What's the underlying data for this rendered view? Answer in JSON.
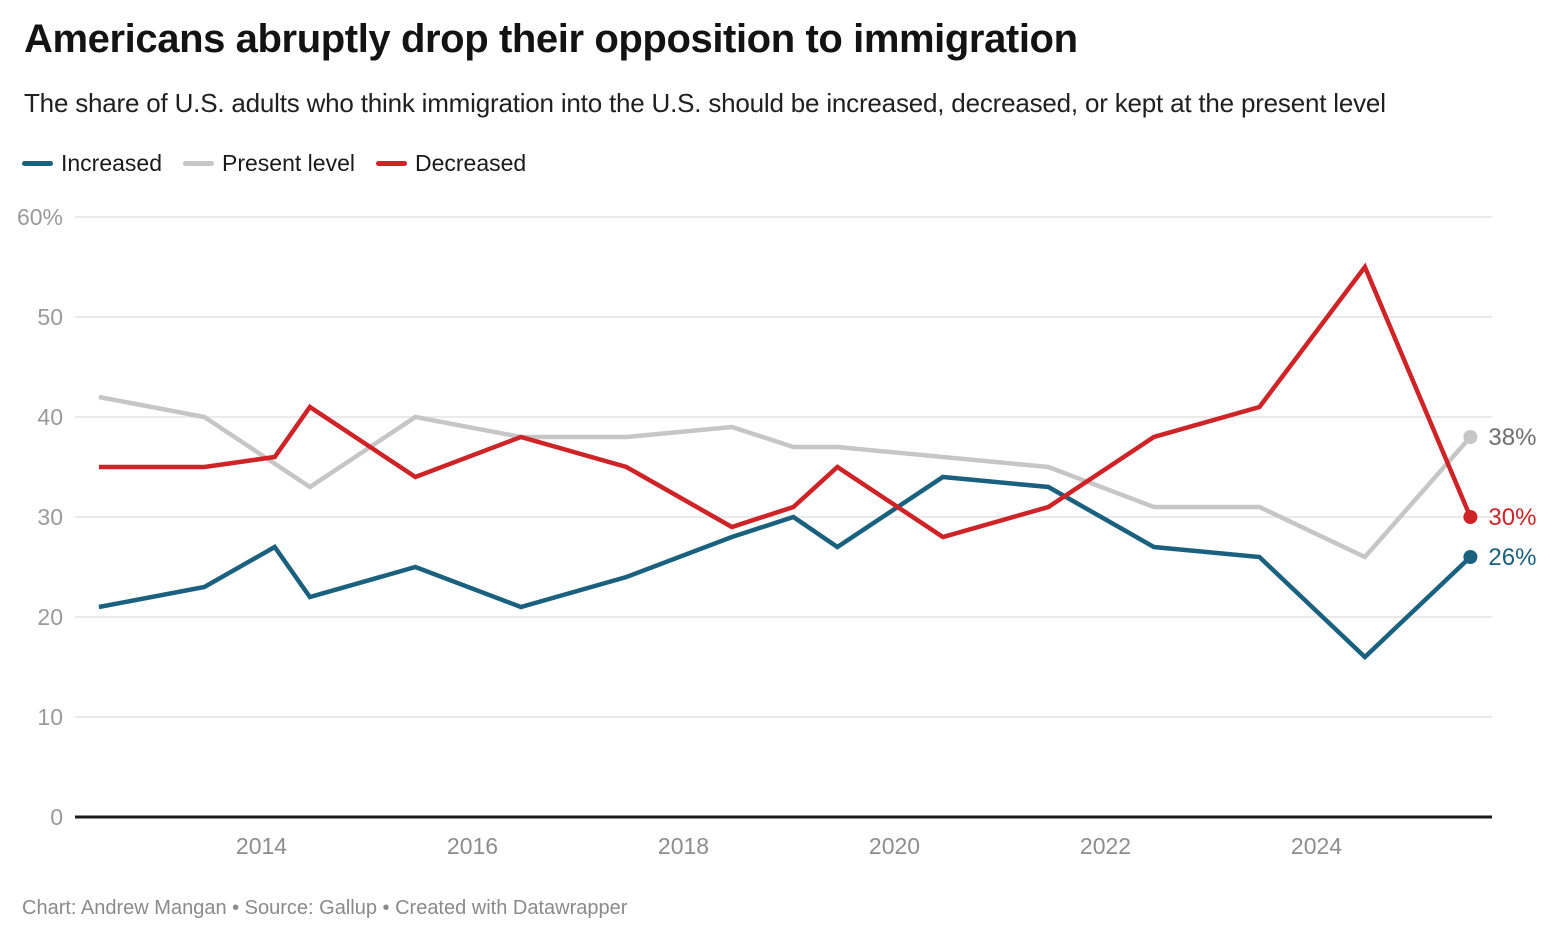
{
  "chart_data": {
    "type": "line",
    "title": "Americans abruptly drop their opposition to immigration",
    "subtitle": "The share of U.S. adults who think immigration into the U.S. should be increased, decreased, or kept at the present level",
    "legend_position": "top-left",
    "grid": "horizontal",
    "ylim": [
      0,
      60
    ],
    "y_ticks": [
      {
        "v": 60,
        "label": "60%"
      },
      {
        "v": 50,
        "label": "50"
      },
      {
        "v": 40,
        "label": "40"
      },
      {
        "v": 30,
        "label": "30"
      },
      {
        "v": 20,
        "label": "20"
      },
      {
        "v": 10,
        "label": "10"
      },
      {
        "v": 0,
        "label": "0"
      }
    ],
    "x_ticks": [
      {
        "v": 2014,
        "label": "2014"
      },
      {
        "v": 2016,
        "label": "2016"
      },
      {
        "v": 2018,
        "label": "2018"
      },
      {
        "v": 2020,
        "label": "2020"
      },
      {
        "v": 2022,
        "label": "2022"
      },
      {
        "v": 2024,
        "label": "2024"
      }
    ],
    "series": [
      {
        "id": "increased",
        "name": "Increased",
        "color": "#1A617F",
        "label_color": "#1A617F",
        "end_label": "26%",
        "points": [
          [
            "2012-06",
            21
          ],
          [
            "2013-06",
            23
          ],
          [
            "2014-02",
            27
          ],
          [
            "2014-06",
            22
          ],
          [
            "2015-06",
            25
          ],
          [
            "2016-06",
            21
          ],
          [
            "2017-06",
            24
          ],
          [
            "2018-06",
            28
          ],
          [
            "2019-01",
            30
          ],
          [
            "2019-06",
            27
          ],
          [
            "2020-06",
            34
          ],
          [
            "2021-06",
            33
          ],
          [
            "2022-06",
            27
          ],
          [
            "2023-06",
            26
          ],
          [
            "2024-06",
            16
          ],
          [
            "2025-06",
            26
          ]
        ]
      },
      {
        "id": "present-level",
        "name": "Present level",
        "color": "#C6C6C6",
        "label_color": "#6E6E6E",
        "end_label": "38%",
        "points": [
          [
            "2012-06",
            42
          ],
          [
            "2013-06",
            40
          ],
          [
            "2014-06",
            33
          ],
          [
            "2015-06",
            40
          ],
          [
            "2016-06",
            38
          ],
          [
            "2017-06",
            38
          ],
          [
            "2018-06",
            39
          ],
          [
            "2019-01",
            37
          ],
          [
            "2019-06",
            37
          ],
          [
            "2020-06",
            36
          ],
          [
            "2021-06",
            35
          ],
          [
            "2022-06",
            31
          ],
          [
            "2023-06",
            31
          ],
          [
            "2024-06",
            26
          ],
          [
            "2025-06",
            38
          ]
        ]
      },
      {
        "id": "decreased",
        "name": "Decreased",
        "color": "#CE2327",
        "label_color": "#CE2327",
        "end_label": "30%",
        "points": [
          [
            "2012-06",
            35
          ],
          [
            "2013-06",
            35
          ],
          [
            "2014-02",
            36
          ],
          [
            "2014-06",
            41
          ],
          [
            "2015-06",
            34
          ],
          [
            "2016-06",
            38
          ],
          [
            "2017-06",
            35
          ],
          [
            "2018-06",
            29
          ],
          [
            "2019-01",
            31
          ],
          [
            "2019-06",
            35
          ],
          [
            "2020-06",
            28
          ],
          [
            "2021-06",
            31
          ],
          [
            "2022-06",
            38
          ],
          [
            "2023-06",
            41
          ],
          [
            "2024-06",
            55
          ],
          [
            "2025-06",
            30
          ]
        ]
      }
    ]
  },
  "footer": {
    "credit": "Chart: Andrew Mangan • Source: Gallup • Created with Datawrapper"
  }
}
